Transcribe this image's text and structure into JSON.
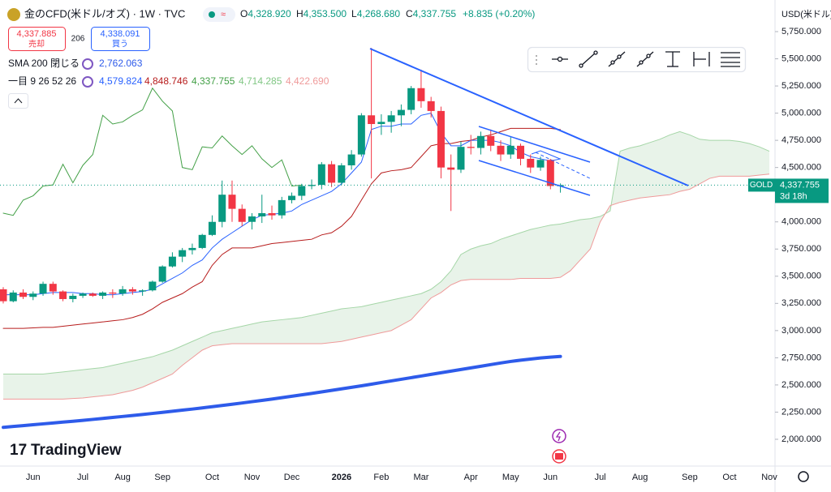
{
  "header": {
    "symbol": "金のCFD(米ドル/オズ) · 1W · TVC",
    "ohlc": [
      {
        "label": "O",
        "value": "4,328.920"
      },
      {
        "label": "H",
        "value": "4,353.500"
      },
      {
        "label": "L",
        "value": "4,268.680"
      },
      {
        "label": "C",
        "value": "4,337.755"
      }
    ],
    "change": "+8.835 (+0.20%)"
  },
  "trade": {
    "sell_price": "4,337.885",
    "sell": "売却",
    "spread": "206",
    "buy_price": "4,338.091",
    "buy": "買う"
  },
  "indicators": [
    {
      "name": "SMA 200 閉じる",
      "values": [
        "2,762.063"
      ]
    },
    {
      "name": "一目 9 26 52 26",
      "values": [
        "4,579.824",
        "4,848.746",
        "4,337.755",
        "4,714.285",
        "4,422.690"
      ]
    }
  ],
  "watermark": "TradingView",
  "chart_data": {
    "type": "candlestick",
    "y_axis_label": "USD(米ドル)",
    "categories": [
      null,
      null,
      null,
      "Jun",
      null,
      null,
      null,
      null,
      "Jul",
      null,
      null,
      null,
      "Aug",
      null,
      null,
      null,
      "Sep",
      null,
      null,
      null,
      null,
      "Oct",
      null,
      null,
      null,
      "Nov",
      null,
      null,
      null,
      "Dec",
      null,
      null,
      null,
      null,
      "2026",
      null,
      null,
      null,
      "Feb",
      null,
      null,
      null,
      "Mar",
      null,
      null,
      null,
      null,
      "Apr",
      null,
      null,
      null,
      "May",
      null,
      null,
      null,
      "Jun",
      null,
      null,
      null,
      null,
      "Jul",
      null,
      null,
      null,
      "Aug",
      null,
      null,
      null,
      null,
      "Sep",
      null,
      null,
      null,
      "Oct",
      null,
      null,
      null,
      "Nov"
    ],
    "candles": {
      "open": [
        3380,
        3270,
        3350,
        3310,
        3340,
        3430,
        3360,
        3290,
        3320,
        3340,
        3320,
        3350,
        3340,
        3380,
        3360,
        3370,
        3450,
        3590,
        3680,
        3740,
        3760,
        3880,
        4000,
        4250,
        4120,
        4000,
        4050,
        4080,
        4060,
        4200,
        4240,
        4330,
        4340,
        4530,
        4360,
        4520,
        4620,
        4980,
        4900,
        4920,
        4980,
        5030,
        5230,
        5110,
        5020,
        4500,
        4480,
        4690,
        4680,
        4790,
        4700,
        4620,
        4700,
        4580,
        4500,
        4570,
        4328.92,
        null,
        null,
        null,
        null,
        null,
        null,
        null,
        null,
        null,
        null,
        null,
        null,
        null,
        null,
        null,
        null,
        null,
        null,
        null,
        null,
        null
      ],
      "high": [
        3400,
        3370,
        3380,
        3360,
        3450,
        3450,
        3370,
        3340,
        3350,
        3350,
        3360,
        3380,
        3410,
        3400,
        3380,
        3460,
        3600,
        3720,
        3760,
        3800,
        3890,
        4060,
        4380,
        4380,
        4160,
        4080,
        4250,
        4150,
        4230,
        4270,
        4350,
        4390,
        4550,
        4560,
        4540,
        4660,
        5000,
        5600,
        4990,
        5020,
        5080,
        5250,
        5400,
        5150,
        5060,
        4620,
        4740,
        4800,
        4830,
        4850,
        4750,
        4780,
        4720,
        4620,
        4600,
        4580,
        4353.5,
        null,
        null,
        null,
        null,
        null,
        null,
        null,
        null,
        null,
        null,
        null,
        null,
        null,
        null,
        null,
        null,
        null,
        null,
        null,
        null,
        null
      ],
      "low": [
        3250,
        3260,
        3290,
        3280,
        3320,
        3330,
        3270,
        3260,
        3300,
        3310,
        3290,
        3300,
        3320,
        3330,
        3320,
        3360,
        3440,
        3580,
        3630,
        3700,
        3750,
        3870,
        3950,
        4000,
        3960,
        3930,
        3990,
        4020,
        4030,
        4170,
        4200,
        4300,
        4300,
        4320,
        4340,
        4480,
        4600,
        4400,
        4800,
        4820,
        4880,
        4990,
        5050,
        4960,
        4400,
        4100,
        4450,
        4620,
        4620,
        4650,
        4560,
        4580,
        4520,
        4450,
        4470,
        4300,
        4268.68,
        null,
        null,
        null,
        null,
        null,
        null,
        null,
        null,
        null,
        null,
        null,
        null,
        null,
        null,
        null,
        null,
        null,
        null,
        null,
        null,
        null
      ],
      "close": [
        3270,
        3350,
        3310,
        3340,
        3430,
        3360,
        3290,
        3320,
        3340,
        3320,
        3350,
        3340,
        3380,
        3360,
        3370,
        3450,
        3590,
        3680,
        3740,
        3760,
        3880,
        4000,
        4250,
        4120,
        4000,
        4050,
        4080,
        4060,
        4200,
        4240,
        4330,
        4340,
        4530,
        4360,
        4520,
        4620,
        4980,
        4900,
        4920,
        4980,
        5030,
        5230,
        5110,
        5020,
        4500,
        4480,
        4690,
        4680,
        4790,
        4700,
        4620,
        4700,
        4580,
        4500,
        4570,
        4330,
        4337.755,
        null,
        null,
        null,
        null,
        null,
        null,
        null,
        null,
        null,
        null,
        null,
        null,
        null,
        null,
        null,
        null,
        null,
        null,
        null,
        null,
        null
      ],
      "up_color": "#089981",
      "down_color": "#f23645"
    },
    "cloud": {
      "fill": "#43a047",
      "span_a": {
        "color": "#a5d6a7",
        "width": 1,
        "values": [
          2600,
          2600,
          2600,
          2600,
          2600,
          2610,
          2620,
          2630,
          2640,
          2650,
          2660,
          2680,
          2700,
          2720,
          2740,
          2760,
          2790,
          2820,
          2860,
          2900,
          2940,
          2980,
          3000,
          3020,
          3040,
          3060,
          3080,
          3090,
          3100,
          3110,
          3120,
          3140,
          3160,
          3180,
          3200,
          3210,
          3220,
          3240,
          3260,
          3280,
          3300,
          3320,
          3340,
          3380,
          3450,
          3550,
          3700,
          3750,
          3780,
          3800,
          3840,
          3870,
          3900,
          3930,
          3950,
          3970,
          3980,
          4000,
          4020,
          4030,
          4050,
          4100,
          4650,
          4680,
          4700,
          4730,
          4760,
          4800,
          4830,
          4800,
          4760,
          4750,
          4750,
          4750,
          4740,
          4720,
          4690,
          4650
        ]
      },
      "span_b": {
        "color": "#ef9a9a",
        "width": 1,
        "values": [
          2370,
          2370,
          2370,
          2370,
          2370,
          2370,
          2370,
          2375,
          2380,
          2390,
          2400,
          2410,
          2430,
          2450,
          2480,
          2520,
          2560,
          2600,
          2680,
          2750,
          2820,
          2860,
          2870,
          2880,
          2880,
          2880,
          2880,
          2880,
          2880,
          2880,
          2880,
          2880,
          2880,
          2890,
          2900,
          2920,
          2940,
          2960,
          2980,
          3000,
          3050,
          3100,
          3200,
          3300,
          3350,
          3420,
          3460,
          3470,
          3470,
          3470,
          3470,
          3470,
          3480,
          3480,
          3480,
          3480,
          3490,
          3550,
          3650,
          3750,
          4000,
          4150,
          4180,
          4200,
          4220,
          4230,
          4240,
          4250,
          4280,
          4300,
          4350,
          4400,
          4420,
          4420,
          4420,
          4420,
          4430,
          4440
        ]
      }
    },
    "lines": [
      {
        "color": "#2e5bea",
        "width": 4,
        "values": [
          2110,
          2118,
          2126,
          2134,
          2142,
          2150,
          2158,
          2166,
          2174,
          2183,
          2192,
          2201,
          2210,
          2219,
          2228,
          2238,
          2248,
          2258,
          2268,
          2278,
          2289,
          2300,
          2311,
          2322,
          2334,
          2346,
          2358,
          2370,
          2383,
          2396,
          2409,
          2422,
          2436,
          2450,
          2464,
          2478,
          2492,
          2507,
          2522,
          2537,
          2552,
          2567,
          2582,
          2597,
          2612,
          2627,
          2642,
          2657,
          2672,
          2687,
          2702,
          2716,
          2728,
          2738,
          2748,
          2756,
          2762.063,
          null,
          null,
          null,
          null,
          null,
          null,
          null,
          null,
          null,
          null,
          null,
          null,
          null,
          null,
          null,
          null,
          null,
          null,
          null,
          null,
          null
        ]
      },
      {
        "color": "#43a047",
        "width": 1,
        "values": [
          4080,
          4060,
          4200,
          4240,
          4330,
          4340,
          4530,
          4360,
          4520,
          4620,
          4980,
          4900,
          4920,
          4980,
          5030,
          5230,
          5110,
          5020,
          4500,
          4480,
          4690,
          4680,
          4790,
          4700,
          4620,
          4700,
          4580,
          4500,
          4570,
          4330,
          4337.755,
          null,
          null,
          null,
          null,
          null,
          null,
          null,
          null,
          null,
          null,
          null,
          null,
          null,
          null,
          null,
          null,
          null,
          null,
          null,
          null,
          null,
          null,
          null,
          null,
          null,
          null,
          null,
          null,
          null,
          null,
          null,
          null,
          null,
          null,
          null,
          null,
          null,
          null,
          null,
          null,
          null,
          null,
          null,
          null,
          null,
          null,
          null
        ]
      },
      {
        "color": "#b71c1c",
        "width": 1,
        "values": [
          3020,
          3020,
          3020,
          3025,
          3030,
          3030,
          3040,
          3050,
          3060,
          3070,
          3080,
          3090,
          3100,
          3120,
          3150,
          3200,
          3260,
          3300,
          3340,
          3400,
          3450,
          3600,
          3700,
          3760,
          3760,
          3760,
          3780,
          3800,
          3810,
          3820,
          3830,
          3840,
          3880,
          3900,
          3960,
          4050,
          4200,
          4350,
          4450,
          4470,
          4480,
          4500,
          4600,
          4700,
          4720,
          4720,
          4740,
          4750,
          4780,
          4800,
          4830,
          4860,
          4860,
          4860,
          4860,
          4860,
          4848.746,
          null,
          null,
          null,
          null,
          null,
          null,
          null,
          null,
          null,
          null,
          null,
          null,
          null,
          null,
          null,
          null,
          null,
          null,
          null,
          null,
          null
        ]
      },
      {
        "color": "#2962ff",
        "width": 1,
        "values": [
          3330,
          3330,
          3330,
          3330,
          3340,
          3350,
          3350,
          3350,
          3340,
          3340,
          3330,
          3330,
          3340,
          3350,
          3360,
          3380,
          3430,
          3480,
          3530,
          3600,
          3650,
          3760,
          3840,
          3900,
          3960,
          4020,
          4060,
          4070,
          4080,
          4100,
          4160,
          4200,
          4240,
          4280,
          4350,
          4450,
          4550,
          4850,
          4880,
          4880,
          4900,
          4900,
          4980,
          5000,
          4820,
          4700,
          4700,
          4750,
          4750,
          4750,
          4730,
          4700,
          4640,
          4600,
          4580,
          4560,
          4579.824,
          null,
          null,
          null,
          null,
          null,
          null,
          null,
          null,
          null,
          null,
          null,
          null,
          null,
          null,
          null,
          null,
          null,
          null,
          null,
          null,
          null
        ]
      }
    ],
    "last_price": {
      "symbol": "GOLD",
      "price": "4,337.755",
      "countdown": "3d 18h"
    },
    "ylim": [
      1753.8,
      6040.8
    ],
    "yticks": [
      {
        "value": 2000,
        "label": "2,000.000"
      },
      {
        "value": 2250,
        "label": "2,250.000"
      },
      {
        "value": 2500,
        "label": "2,500.000"
      },
      {
        "value": 2750,
        "label": "2,750.000"
      },
      {
        "value": 3000,
        "label": "3,000.000"
      },
      {
        "value": 3250,
        "label": "3,250.000"
      },
      {
        "value": 3500,
        "label": "3,500.000"
      },
      {
        "value": 3750,
        "label": "3,750.000"
      },
      {
        "value": 4000,
        "label": "4,000.000"
      },
      {
        "value": 4250,
        "label": "4,250.000"
      },
      {
        "value": 4500,
        "label": "4,500.000"
      },
      {
        "value": 4750,
        "label": "4,750.000"
      },
      {
        "value": 5000,
        "label": "5,000.000"
      },
      {
        "value": 5250,
        "label": "5,250.000"
      },
      {
        "value": 5500,
        "label": "5,500.000"
      },
      {
        "value": 5750,
        "label": "5,750.000"
      }
    ],
    "grid": false
  }
}
